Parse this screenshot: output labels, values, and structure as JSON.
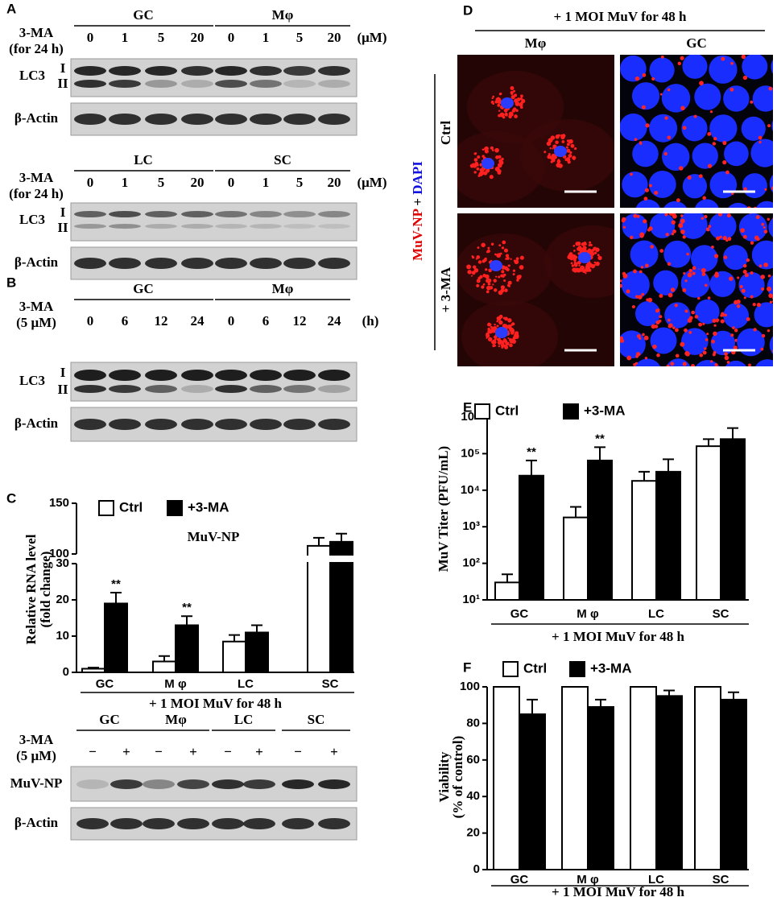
{
  "panel_labels": [
    "A",
    "B",
    "C",
    "D",
    "E",
    "F"
  ],
  "panel_a": {
    "treatment": "3-MA",
    "duration": "(for 24 h)",
    "dose_unit": "(μM)",
    "marker": "LC3",
    "band_upper": "I",
    "band_lower": "II",
    "loading": "β-Actin",
    "blots": [
      {
        "groups": [
          "GC",
          "Mφ"
        ],
        "doses": [
          0,
          1,
          5,
          20,
          0,
          1,
          5,
          20
        ]
      },
      {
        "groups": [
          "LC",
          "SC"
        ],
        "doses": [
          0,
          1,
          5,
          20,
          0,
          1,
          5,
          20
        ]
      }
    ]
  },
  "panel_b": {
    "treatment": "3-MA",
    "dose": "(5 μM)",
    "time_unit": "(h)",
    "groups": [
      "GC",
      "Mφ"
    ],
    "times": [
      0,
      6,
      12,
      24,
      0,
      6,
      12,
      24
    ],
    "marker": "LC3",
    "band_upper": "I",
    "band_lower": "II",
    "loading": "β-Actin"
  },
  "panel_c_blot": {
    "treatment": "3-MA",
    "dose": "(5 μM)",
    "groups": [
      "GC",
      "Mφ",
      "LC",
      "SC"
    ],
    "lanes": [
      "−",
      "+",
      "−",
      "+",
      "−",
      "+",
      "−",
      "+"
    ],
    "marker": "MuV-NP",
    "loading": "β-Actin"
  },
  "panel_d": {
    "header": "+ 1 MOI MuV for 48 h",
    "columns": [
      "Mφ",
      "GC"
    ],
    "rows": [
      "Ctrl",
      "+ 3-MA"
    ],
    "stain": [
      "MuV-NP",
      "+",
      "DAPI"
    ]
  },
  "chart_data": [
    {
      "type": "bar",
      "title": "MuV-NP",
      "categories": [
        "GC",
        "M φ",
        "LC",
        "SC"
      ],
      "series": [
        {
          "name": "Ctrl",
          "color": "#ffffff",
          "values": [
            1,
            3,
            8.5,
            108
          ],
          "errors": [
            0.3,
            1.5,
            1.8,
            8
          ]
        },
        {
          "name": "+3-MA",
          "color": "#000000",
          "values": [
            19,
            13,
            11,
            112
          ],
          "errors": [
            3,
            2.5,
            2,
            8
          ]
        }
      ],
      "ylim": [
        0,
        150
      ],
      "yticks": [
        0,
        10,
        20,
        30,
        100,
        150
      ],
      "axis_break": [
        30,
        100
      ],
      "ylabel": [
        "Relative RNA level",
        "(fold change)"
      ],
      "xlabel": "+ 1 MOI MuV for 48 h",
      "annotations": [
        {
          "text": "**",
          "category": 0,
          "series": 1
        },
        {
          "text": "**",
          "category": 1,
          "series": 1
        }
      ],
      "legend": "top-left",
      "grid": false
    },
    {
      "type": "bar",
      "categories": [
        "GC",
        "M φ",
        "LC",
        "SC"
      ],
      "series": [
        {
          "name": "Ctrl",
          "color": "#ffffff",
          "values": [
            30,
            1800,
            18000,
            160000
          ],
          "errors": [
            20,
            1700,
            14000,
            90000
          ]
        },
        {
          "name": "+3-MA",
          "color": "#000000",
          "values": [
            25000,
            65000,
            32000,
            250000
          ],
          "errors": [
            40000,
            85000,
            38000,
            250000
          ]
        }
      ],
      "log_scale": true,
      "ylim": [
        10,
        1000000
      ],
      "yticks": [
        {
          "value": 10,
          "label": "10¹"
        },
        {
          "value": 100,
          "label": "10²"
        },
        {
          "value": 1000,
          "label": "10³"
        },
        {
          "value": 10000,
          "label": "10⁴"
        },
        {
          "value": 100000,
          "label": "10⁵"
        },
        {
          "value": 1000000,
          "label": "10⁶"
        }
      ],
      "ylabel": "MuV Titer (PFU/mL)",
      "xlabel": "+ 1 MOI MuV for 48 h",
      "annotations": [
        {
          "text": "**",
          "category": 0,
          "series": 1
        },
        {
          "text": "**",
          "category": 1,
          "series": 1
        }
      ],
      "legend": "top-left",
      "grid": false
    },
    {
      "type": "bar",
      "categories": [
        "GC",
        "M φ",
        "LC",
        "SC"
      ],
      "series": [
        {
          "name": "Ctrl",
          "color": "#ffffff",
          "values": [
            100,
            100,
            100,
            100
          ],
          "errors": [
            0,
            0,
            0,
            0
          ]
        },
        {
          "name": "+3-MA",
          "color": "#000000",
          "values": [
            85,
            89,
            95,
            93
          ],
          "errors": [
            8,
            4,
            3,
            4
          ]
        }
      ],
      "ylim": [
        0,
        100
      ],
      "yticks": [
        0,
        20,
        40,
        60,
        80,
        100
      ],
      "ylabel": [
        "Viability",
        "(% of control)"
      ],
      "xlabel": "+ 1 MOI MuV for 48 h",
      "legend": "top-left",
      "grid": false
    }
  ]
}
